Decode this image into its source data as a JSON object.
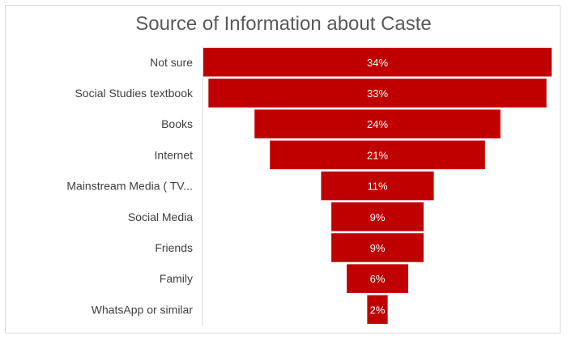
{
  "chart_data": {
    "type": "bar",
    "orientation": "funnel",
    "title": "Source of Information about Caste",
    "categories": [
      "Not sure",
      "Social Studies textbook",
      "Books",
      "Internet",
      "Mainstream Media ( TV...",
      "Social Media",
      "Friends",
      "Family",
      "WhatsApp or similar"
    ],
    "values": [
      34,
      33,
      24,
      21,
      11,
      9,
      9,
      6,
      2
    ],
    "value_labels": [
      "34%",
      "33%",
      "24%",
      "21%",
      "11%",
      "9%",
      "9%",
      "6%",
      "2%"
    ],
    "unit": "%",
    "xlabel": "",
    "ylabel": "",
    "bar_color": "#c00000"
  }
}
